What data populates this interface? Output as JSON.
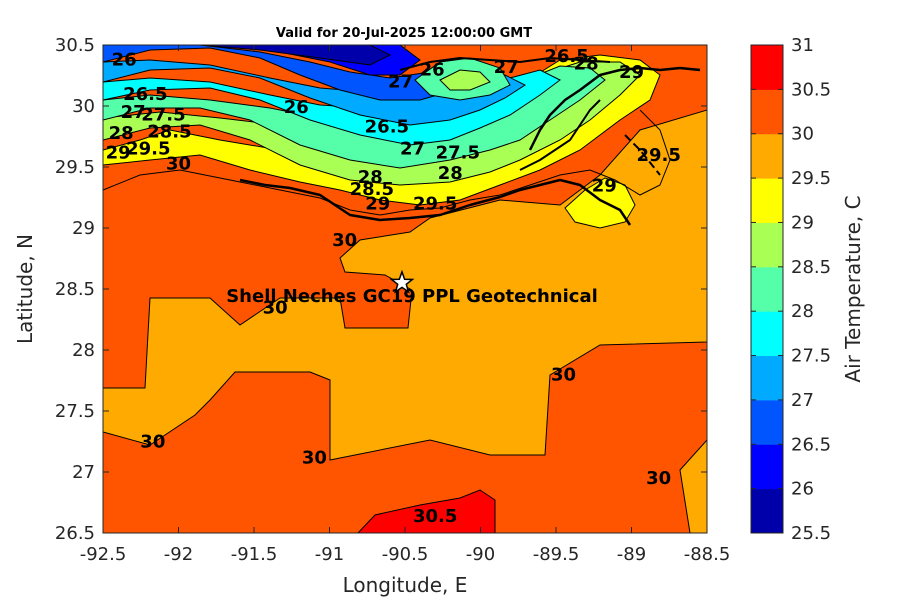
{
  "title": "Valid for 20-Jul-2025 12:00:00 GMT",
  "site_label": "Shell Neches   GC19 PPL  Geotechnical",
  "site": {
    "lon": -90.52,
    "lat": 28.55
  },
  "x_axis": {
    "label": "Longitude, E",
    "range": [
      -92.5,
      -88.5
    ],
    "ticks": [
      -92.5,
      -92,
      -91.5,
      -91,
      -90.5,
      -90,
      -89.5,
      -89,
      -88.5
    ]
  },
  "y_axis": {
    "label": "Latitude, N",
    "range": [
      26.5,
      30.5
    ],
    "ticks": [
      26.5,
      27,
      27.5,
      28,
      28.5,
      29,
      29.5,
      30,
      30.5
    ]
  },
  "colorbar": {
    "label": "Air Temperature, C",
    "ticks": [
      25.5,
      26,
      26.5,
      27,
      27.5,
      28,
      28.5,
      29,
      29.5,
      30,
      30.5,
      31
    ],
    "colors": [
      "#0000aa",
      "#0000ff",
      "#0055ff",
      "#00aaff",
      "#00ffff",
      "#55ffaa",
      "#aaff55",
      "#ffff00",
      "#ffaa00",
      "#ff5500",
      "#ff0000",
      "#aa0000"
    ]
  },
  "contour_labels": [
    {
      "text": "26",
      "lon": -92.36,
      "lat": 30.38
    },
    {
      "text": "26.5",
      "lon": -92.22,
      "lat": 30.1
    },
    {
      "text": "27",
      "lon": -92.3,
      "lat": 29.95
    },
    {
      "text": "27.5",
      "lon": -92.1,
      "lat": 29.93
    },
    {
      "text": "28",
      "lon": -92.38,
      "lat": 29.78
    },
    {
      "text": "28.5",
      "lon": -92.06,
      "lat": 29.79
    },
    {
      "text": "29",
      "lon": -92.4,
      "lat": 29.62
    },
    {
      "text": "29.5",
      "lon": -92.2,
      "lat": 29.65
    },
    {
      "text": "30",
      "lon": -92.0,
      "lat": 29.53
    },
    {
      "text": "26",
      "lon": -91.22,
      "lat": 29.99
    },
    {
      "text": "26.5",
      "lon": -90.62,
      "lat": 29.83
    },
    {
      "text": "27",
      "lon": -90.53,
      "lat": 30.2
    },
    {
      "text": "27",
      "lon": -90.45,
      "lat": 29.65
    },
    {
      "text": "26",
      "lon": -90.32,
      "lat": 30.3
    },
    {
      "text": "27.5",
      "lon": -90.15,
      "lat": 29.62
    },
    {
      "text": "27",
      "lon": -89.83,
      "lat": 30.32
    },
    {
      "text": "26.5",
      "lon": -89.43,
      "lat": 30.41
    },
    {
      "text": "28",
      "lon": -89.3,
      "lat": 30.35
    },
    {
      "text": "29",
      "lon": -89.0,
      "lat": 30.28
    },
    {
      "text": "28",
      "lon": -90.73,
      "lat": 29.42
    },
    {
      "text": "28.5",
      "lon": -90.72,
      "lat": 29.32
    },
    {
      "text": "29",
      "lon": -90.68,
      "lat": 29.2
    },
    {
      "text": "29.5",
      "lon": -90.3,
      "lat": 29.2
    },
    {
      "text": "28",
      "lon": -90.2,
      "lat": 29.45
    },
    {
      "text": "29",
      "lon": -89.18,
      "lat": 29.35
    },
    {
      "text": "29.5",
      "lon": -88.82,
      "lat": 29.6
    },
    {
      "text": "30",
      "lon": -90.9,
      "lat": 28.9
    },
    {
      "text": "30",
      "lon": -91.36,
      "lat": 28.35
    },
    {
      "text": "30",
      "lon": -89.45,
      "lat": 27.8
    },
    {
      "text": "30",
      "lon": -92.17,
      "lat": 27.25
    },
    {
      "text": "30",
      "lon": -91.1,
      "lat": 27.12
    },
    {
      "text": "30.5",
      "lon": -90.3,
      "lat": 26.64
    },
    {
      "text": "30",
      "lon": -88.82,
      "lat": 26.95
    }
  ]
}
